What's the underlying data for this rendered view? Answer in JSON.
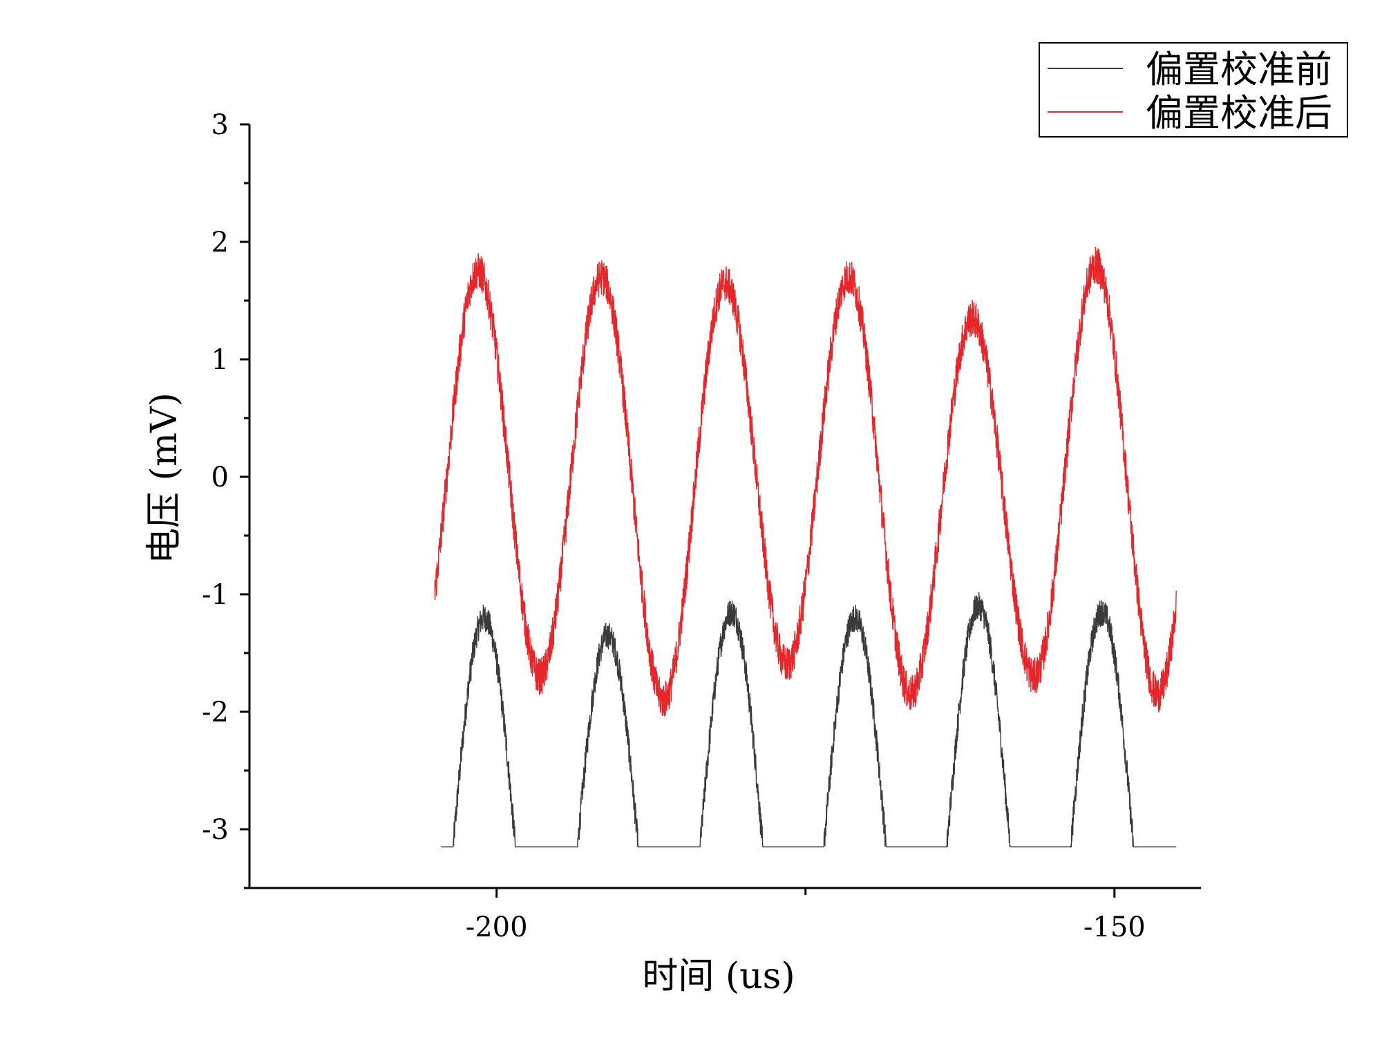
{
  "chart_data": {
    "type": "line",
    "title": "",
    "xlabel": "时间 (us)",
    "ylabel": "电压 (mV)",
    "xlim": [
      -220,
      -143
    ],
    "ylim": [
      -3.5,
      3
    ],
    "x_major_ticks": [
      -200,
      -150
    ],
    "x_tick_labels": [
      "-200",
      "-150"
    ],
    "x_unlabeled_ticks": [
      -175
    ],
    "y_major_ticks": [
      3,
      2,
      1,
      0,
      -1,
      -2,
      -3
    ],
    "y_tick_labels": [
      "3",
      "2",
      "1",
      "0",
      "-1",
      "-2",
      "-3"
    ],
    "grid": false,
    "legend_position": "top-right",
    "series": [
      {
        "name": "偏置校准前",
        "color": "#3a3a3a",
        "waveform": "clipped-sine",
        "x_range": [
          -204.5,
          -145
        ],
        "period": 10,
        "peak_x": [
          -201,
          -191,
          -181,
          -171,
          -161,
          -151
        ],
        "peak_values": [
          -1.2,
          -1.35,
          -1.15,
          -1.2,
          -1.1,
          -1.15
        ],
        "floor": -3.15,
        "peak_offset": 1.9
      },
      {
        "name": "偏置校准后",
        "color": "#e8262a",
        "waveform": "sine",
        "x_range": [
          -205,
          -145
        ],
        "period": 10,
        "peak_x": [
          -201.5,
          -191.5,
          -181.5,
          -171.5,
          -161.5,
          -151.5
        ],
        "peak_values": [
          1.75,
          1.7,
          1.65,
          1.7,
          1.35,
          1.8
        ],
        "trough_x": [
          -196.5,
          -186.5,
          -176.5,
          -166.5,
          -156.5,
          -146.5
        ],
        "trough_values": [
          -1.7,
          -1.9,
          -1.6,
          -1.85,
          -1.7,
          -1.85
        ]
      }
    ]
  }
}
